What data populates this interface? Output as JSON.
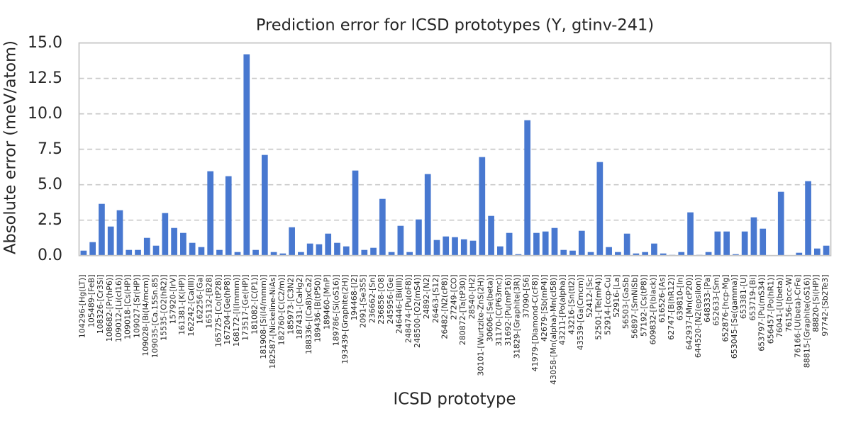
{
  "chart_data": {
    "type": "bar",
    "title": "Prediction error for ICSD prototypes (Y, gtinv-241)",
    "xlabel": "ICSD prototype",
    "ylabel": "Absolute error (meV/atom)",
    "ylim": [
      0,
      15
    ],
    "ytick_labels": [
      "0.0",
      "2.5",
      "5.0",
      "7.5",
      "10.0",
      "12.5",
      "15.0"
    ],
    "ytick_values": [
      0,
      2.5,
      5,
      7.5,
      10,
      12.5,
      15
    ],
    "grid": "horizontal-dashed",
    "legend": "none",
    "bar_color": "#4878d0",
    "categories": [
      "104296-[Hg(LT)]",
      "105489-[FeB]",
      "108326-[Cr3Si]",
      "108682-[Pr(hP6)]",
      "109012-[Li(cI16)]",
      "109018-[Cs(HP)]",
      "109027-[Sr(HP)]",
      "109028-[Bi(I4/mcm)]",
      "109035-[Ca.15Sn.85]",
      "15535-[O2(hR2)]",
      "157920-[IrV]",
      "161381-[K(HP)]",
      "162242-[Ca(III)]",
      "162256-[Ga]",
      "165132-[B28]",
      "165725-[Co(tP28)]",
      "167204-[Ge(hP8)]",
      "168172-[I(Immm)]",
      "173517-[Ge(HP)]",
      "181082-[C(P1)]",
      "181908-[Si(I4/mmm)]",
      "182587-[Nickeline-NiAs]",
      "182760-[C(C2/m)]",
      "185973-[C3N2]",
      "187431-[CaHg2]",
      "188336-[(Ca8)xCa2]",
      "189436-[B(tP50)]",
      "189460-[MnP]",
      "189786-[Si(oS16)]",
      "193439-[Graphite(2H)]",
      "194468-[I2]",
      "2091-[Se3S5]",
      "236662-[Sn]",
      "236858-[O8]",
      "245956-[Ge]",
      "246446-[Bi(III)]",
      "248474-[Pu(oF8)]",
      "248500-[O2(mS4)]",
      "24892-[N2]",
      "26463-[S12]",
      "26482-[N2(cP8)]",
      "27249-[CO]",
      "280872-[Ta(tP30)]",
      "28540-[H2]",
      "30101-[Wurtzite-ZnS(2H)]",
      "30606-[Se(beta)]",
      "31170-[C(P63mc)]",
      "31692-[Pu(mP16)]",
      "31829-[Graphite(3R)]",
      "37090-[S6]",
      "41979-[Diamond-C(cF8)]",
      "42679-[Sb(mP4)]",
      "43058-[Mn(alpha)-Mn(cI58)]",
      "43211-[Po(alpha)]",
      "43216-[Sn(tI2)]",
      "43539-[Ga(Cmcm)]",
      "52412-[Sc]",
      "52501-[Te(mP4)]",
      "52914-[ccp-Cu]",
      "52916-[La]",
      "56503-[GaSb]",
      "56897-[SmNiSb]",
      "57192-[Cs(tP8)]",
      "609832-[P(black)]",
      "616526-[As]",
      "62747-[B(hR12)]",
      "639810-[In]",
      "642937-[Mn(cP20)]",
      "644520-[N2(epsilon)]",
      "648333-[Pa]",
      "652633-[Sm]",
      "652876-[hcp-Mg]",
      "653045-[Se(gamma)]",
      "653381-[U]",
      "653719-[Bi]",
      "653797-[Pu(mS34)]",
      "656457-[Po(hR1)]",
      "76041-[U(beta)]",
      "76156-[bcc-W]",
      "76166-[U(beta)-CrFe]",
      "88815-[Graphite(oS16)]",
      "88820-[Si(HP)]",
      "97742-[Sb2Te3]"
    ],
    "values": [
      0.35,
      0.95,
      3.65,
      2.05,
      3.2,
      0.4,
      0.4,
      1.25,
      0.7,
      3.0,
      1.95,
      1.6,
      0.9,
      0.6,
      5.95,
      0.4,
      5.6,
      0.25,
      14.2,
      0.4,
      7.1,
      0.25,
      0.15,
      2.0,
      0.25,
      0.85,
      0.8,
      1.55,
      0.9,
      0.65,
      6.0,
      0.4,
      0.55,
      4.0,
      0.25,
      2.1,
      0.25,
      2.55,
      5.75,
      1.1,
      1.35,
      1.3,
      1.15,
      1.05,
      6.95,
      2.8,
      0.65,
      1.6,
      0.1,
      9.55,
      1.6,
      1.7,
      1.95,
      0.4,
      0.35,
      1.75,
      0.25,
      6.6,
      0.6,
      0.25,
      1.55,
      0.15,
      0.25,
      0.85,
      0.15,
      0.05,
      0.25,
      3.05,
      0.05,
      0.25,
      1.7,
      1.7,
      0.1,
      1.7,
      2.7,
      1.9,
      0.02,
      4.5,
      0.02,
      0.2,
      5.25,
      0.5,
      0.7
    ]
  },
  "colors": {
    "background": "#ffffff",
    "bar": "#4878d0",
    "grid": "#c9c9c9",
    "spine": "#c6c6c6",
    "text": "#262626"
  }
}
